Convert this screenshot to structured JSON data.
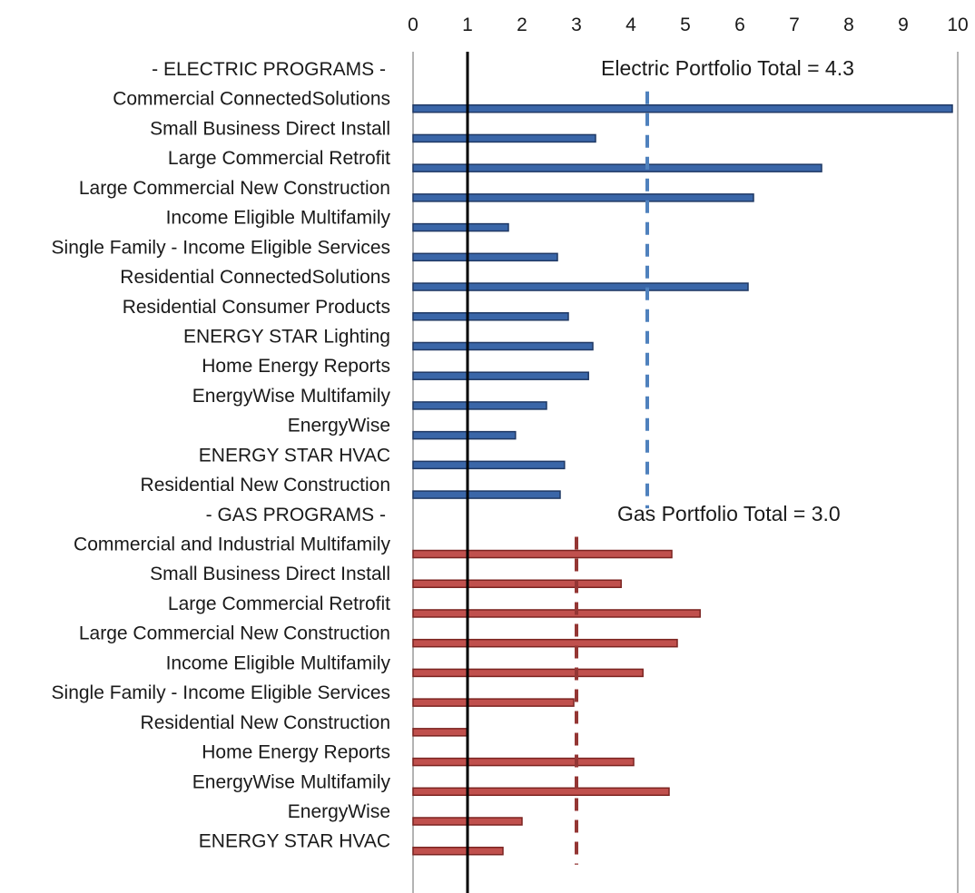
{
  "chart_data": {
    "type": "bar",
    "orientation": "horizontal",
    "xlim": [
      0,
      10
    ],
    "xticks": [
      "0",
      "1",
      "2",
      "3",
      "4",
      "5",
      "6",
      "7",
      "8",
      "9",
      "10"
    ],
    "x_axis_position": "top",
    "grid": false,
    "reference_line": {
      "value": 1,
      "color": "#000000"
    },
    "groups": [
      {
        "header": "- ELECTRIC PROGRAMS -",
        "color": "#3A66A8",
        "edge_color": "#1F3864",
        "portfolio_total": 4.3,
        "portfolio_label": "Electric Portfolio Total = 4.3",
        "categories": [
          "Commercial ConnectedSolutions",
          "Small Business Direct Install",
          "Large Commercial Retrofit",
          "Large Commercial New Construction",
          "Income Eligible Multifamily",
          "Single Family - Income Eligible Services",
          "Residential ConnectedSolutions",
          "Residential Consumer Products",
          "ENERGY STAR Lighting",
          "Home Energy Reports",
          "EnergyWise Multifamily",
          "EnergyWise",
          "ENERGY STAR HVAC",
          "Residential New Construction"
        ],
        "values": [
          9.9,
          3.35,
          7.5,
          6.25,
          1.75,
          2.65,
          6.15,
          2.85,
          3.3,
          3.22,
          2.45,
          1.88,
          2.78,
          2.7
        ]
      },
      {
        "header": "- GAS PROGRAMS -",
        "color": "#C0504D",
        "edge_color": "#7B2421",
        "portfolio_total": 3.0,
        "portfolio_label": "Gas Portfolio Total = 3.0",
        "categories": [
          "Commercial and Industrial Multifamily",
          "Small Business Direct Install",
          "Large Commercial Retrofit",
          "Large Commercial New Construction",
          "Income Eligible Multifamily",
          "Single Family - Income Eligible Services",
          "Residential New Construction",
          "Home Energy Reports",
          "EnergyWise Multifamily",
          "EnergyWise",
          "ENERGY STAR HVAC"
        ],
        "values": [
          4.75,
          3.82,
          5.27,
          4.85,
          4.22,
          2.95,
          1.0,
          4.05,
          4.7,
          2.0,
          1.65
        ]
      }
    ]
  }
}
